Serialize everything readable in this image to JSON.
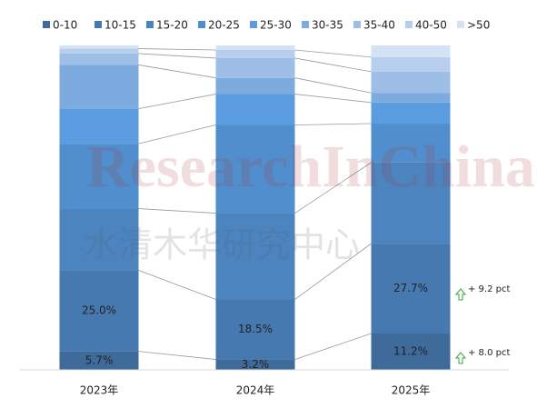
{
  "chart_data": {
    "type": "stacked_bar_100",
    "categories": [
      "2023年",
      "2024年",
      "2025年"
    ],
    "ylim": [
      0,
      100
    ],
    "series": [
      {
        "name": "0-10",
        "color": "#3f6b9a",
        "values": [
          5.7,
          3.2,
          11.2
        ],
        "value_labels": [
          "5.7%",
          "3.2%",
          "11.2%"
        ]
      },
      {
        "name": "10-15",
        "color": "#4679b0",
        "values": [
          25.0,
          18.5,
          27.7
        ],
        "value_labels": [
          "25.0%",
          "18.5%",
          "27.7%"
        ]
      },
      {
        "name": "15-20",
        "color": "#4c84c0",
        "values": [
          19.0,
          26.6,
          25.0
        ]
      },
      {
        "name": "20-25",
        "color": "#518ecd",
        "values": [
          20.0,
          27.2,
          12.0
        ]
      },
      {
        "name": "25-30",
        "color": "#5b9bdf",
        "values": [
          10.8,
          9.5,
          6.5
        ]
      },
      {
        "name": "30-35",
        "color": "#7eabdf",
        "values": [
          13.5,
          5.0,
          3.0
        ]
      },
      {
        "name": "35-40",
        "color": "#9dbfe6",
        "values": [
          3.5,
          6.1,
          6.5
        ]
      },
      {
        "name": "40-50",
        "color": "#b7cfec",
        "values": [
          1.5,
          2.5,
          4.5
        ]
      },
      {
        "name": ">50",
        "color": "#d3e2f4",
        "values": [
          1.0,
          1.4,
          3.6
        ]
      }
    ],
    "annotations": [
      "+ 9.2 pct",
      "+ 8.0 pct"
    ],
    "watermark": [
      "ResearchInChina",
      "水清木华研究中心"
    ]
  }
}
